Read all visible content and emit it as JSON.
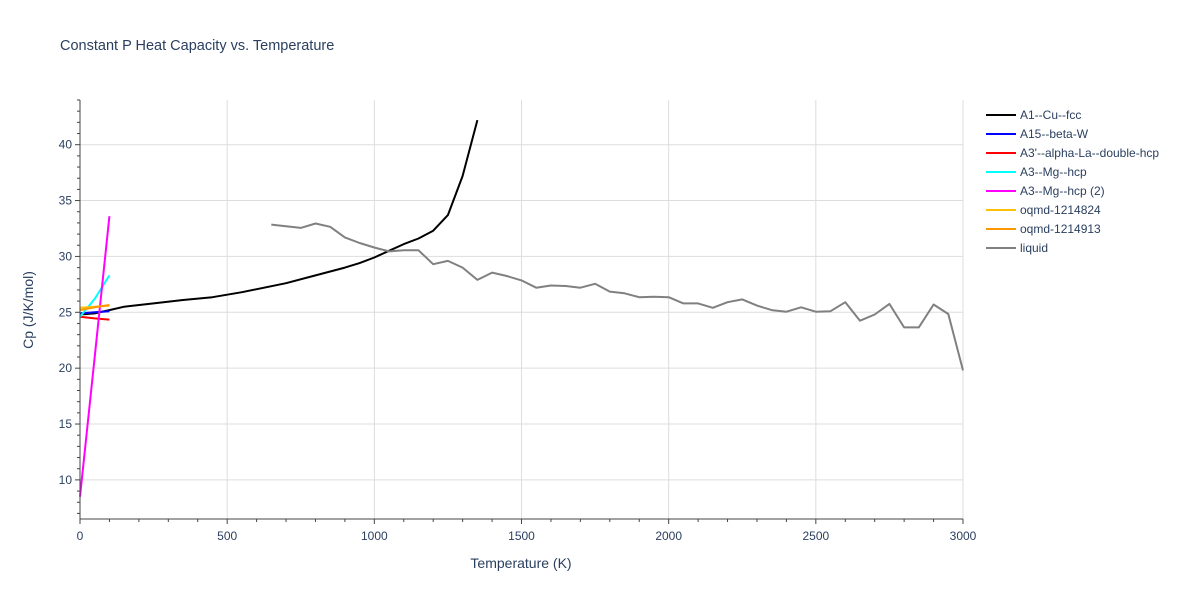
{
  "chart_data": {
    "type": "line",
    "title": "Constant P Heat Capacity vs. Temperature",
    "xlabel": "Temperature (K)",
    "ylabel": "Cp (J/K/mol)",
    "xlim": [
      0,
      3000
    ],
    "ylim": [
      6.5,
      44
    ],
    "xticks": [
      0,
      500,
      1000,
      1500,
      2000,
      2500,
      3000
    ],
    "xtick_labels": [
      "0",
      "500",
      "1000",
      "1500",
      "2000",
      "2500",
      "3000"
    ],
    "yticks": [
      10,
      15,
      20,
      25,
      30,
      35,
      40
    ],
    "ytick_labels": [
      "10",
      "15",
      "20",
      "25",
      "30",
      "35",
      "40"
    ],
    "grid": true,
    "legend_position": "right",
    "series": [
      {
        "name": "A1--Cu--fcc",
        "color": "#000000",
        "x": [
          0,
          50,
          100,
          150,
          250,
          350,
          450,
          550,
          700,
          800,
          900,
          950,
          1000,
          1050,
          1100,
          1150,
          1200,
          1250,
          1300,
          1350
        ],
        "y": [
          24.8,
          24.9,
          25.2,
          25.5,
          25.8,
          26.1,
          26.35,
          26.8,
          27.6,
          28.3,
          29.0,
          29.4,
          29.9,
          30.5,
          31.1,
          31.6,
          32.3,
          33.7,
          37.2,
          42.2
        ]
      },
      {
        "name": "A15--beta-W",
        "color": "#0000ff",
        "x": [
          0,
          50,
          100
        ],
        "y": [
          24.9,
          25.0,
          25.1
        ]
      },
      {
        "name": "A3'--alpha-La--double-hcp",
        "color": "#ff0000",
        "x": [
          0,
          50,
          100
        ],
        "y": [
          24.6,
          24.45,
          24.35
        ]
      },
      {
        "name": "A3--Mg--hcp",
        "color": "#00ffff",
        "x": [
          0,
          50,
          100
        ],
        "y": [
          24.6,
          26.2,
          28.3
        ]
      },
      {
        "name": "A3--Mg--hcp (2)",
        "color": "#ff00ff",
        "x": [
          0,
          50,
          100
        ],
        "y": [
          8.5,
          21.0,
          33.6
        ]
      },
      {
        "name": "oqmd-1214824",
        "color": "#ffc107",
        "x": [
          0,
          50,
          100
        ],
        "y": [
          25.4,
          25.5,
          25.6
        ]
      },
      {
        "name": "oqmd-1214913",
        "color": "#ff9800",
        "x": [
          0,
          50,
          100
        ],
        "y": [
          25.2,
          25.45,
          25.65
        ]
      },
      {
        "name": "liquid",
        "color": "#808080",
        "x": [
          650,
          700,
          750,
          800,
          850,
          900,
          950,
          1000,
          1050,
          1100,
          1150,
          1200,
          1250,
          1300,
          1350,
          1400,
          1450,
          1500,
          1550,
          1600,
          1650,
          1700,
          1750,
          1800,
          1850,
          1900,
          1950,
          2000,
          2050,
          2100,
          2150,
          2200,
          2250,
          2300,
          2350,
          2400,
          2450,
          2500,
          2550,
          2600,
          2650,
          2700,
          2750,
          2800,
          2850,
          2900,
          2950,
          3000
        ],
        "y": [
          32.85,
          32.7,
          32.55,
          32.95,
          32.65,
          31.7,
          31.2,
          30.8,
          30.45,
          30.55,
          30.55,
          29.3,
          29.6,
          29.0,
          27.9,
          28.55,
          28.25,
          27.85,
          27.2,
          27.4,
          27.35,
          27.2,
          27.55,
          26.85,
          26.7,
          26.35,
          26.4,
          26.35,
          25.8,
          25.8,
          25.4,
          25.9,
          26.15,
          25.6,
          25.2,
          25.05,
          25.45,
          25.05,
          25.1,
          25.9,
          24.25,
          24.8,
          25.75,
          23.65,
          23.65,
          25.7,
          24.85,
          19.8
        ]
      }
    ]
  }
}
